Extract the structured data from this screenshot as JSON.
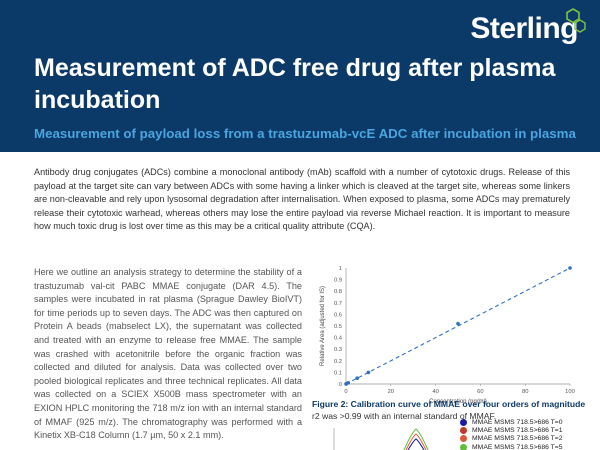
{
  "brand": {
    "name": "Sterling",
    "colors": {
      "header_bg": "#0c3a68",
      "accent": "#4aa5e0",
      "logo_mark": "#7dc242"
    }
  },
  "header": {
    "title": "Measurement of ADC free drug after plasma incubation",
    "subtitle": "Measurement of payload loss from a trastuzumab-vcE ADC after incubation in plasma"
  },
  "intro": "Antibody drug conjugates (ADCs) combine a monoclonal antibody (mAb) scaffold with a number of cytotoxic drugs. Release of this payload at the target site can vary between ADCs with some having a linker which is cleaved at the target site, whereas some linkers are non-cleavable and rely upon lysosomal degradation after internalisation. When exposed to plasma, some ADCs may prematurely release their cytotoxic warhead, whereas others may lose the entire payload via reverse Michael reaction. It is important to measure how much toxic drug is lost over time as this may be a critical quality attribute (CQA).",
  "body": "Here we outline an analysis strategy to determine the stability of a trastuzumab val-cit PABC MMAE conjugate (DAR 4.5). The samples were incubated in rat plasma (Sprague Dawley BioIVT) for time periods up to seven days. The ADC was then captured on Protein A beads (mabselect LX), the supernatant was collected and treated with an enzyme to release free MMAE. The sample was crashed with acetonitrile before the organic fraction was collected and diluted for analysis. Data was collected over two pooled biological replicates and three technical replicates. All data was collected on a SCIEX X500B mass spectrometer with an EXION HPLC monitoring the 718 m/z ion with an internal standard of MMAF (925 m/z). The chromatography was performed with a Kinetix XB-C18 Column (1.7 µm, 50 x 2.1 mm).",
  "figure": {
    "caption_bold": "Figure 2: Calibration curve of MMAE over four orders of magnitude",
    "caption_rest": "r2 was >0.99 with an internal standard of MMAF."
  },
  "chart_data": {
    "type": "scatter",
    "xlabel": "Concentration (ng/ml)",
    "ylabel": "Relative Area (adjusted for IS)",
    "xlim": [
      0,
      100
    ],
    "ylim": [
      0,
      1
    ],
    "xticks": [
      0,
      20,
      40,
      60,
      80,
      100
    ],
    "yticks": [
      0,
      0.1,
      0.2,
      0.3,
      0.4,
      0.5,
      0.6,
      0.7,
      0.8,
      0.9,
      1
    ],
    "points": [
      {
        "x": 0.01,
        "y": 0.0
      },
      {
        "x": 0.1,
        "y": 0.002
      },
      {
        "x": 1,
        "y": 0.01
      },
      {
        "x": 5,
        "y": 0.05
      },
      {
        "x": 10,
        "y": 0.1
      },
      {
        "x": 50,
        "y": 0.52
      },
      {
        "x": 100,
        "y": 1.0
      }
    ],
    "trendline": {
      "x": [
        0,
        100
      ],
      "y": [
        0,
        1.0
      ],
      "style": "dashed"
    },
    "color": "#2f6fc6"
  },
  "chromatogram": {
    "legend": [
      {
        "label": "MMAE MSMS 718.5>686 T=0",
        "color": "#1a1aa8"
      },
      {
        "label": "MMAE MSMS 718.5>686 T=1",
        "color": "#c0392b"
      },
      {
        "label": "MMAE MSMS 718.5>686 T=2",
        "color": "#e0573a"
      },
      {
        "label": "MMAE MSMS 718.5>686 T=5",
        "color": "#5bbf3a"
      }
    ]
  }
}
